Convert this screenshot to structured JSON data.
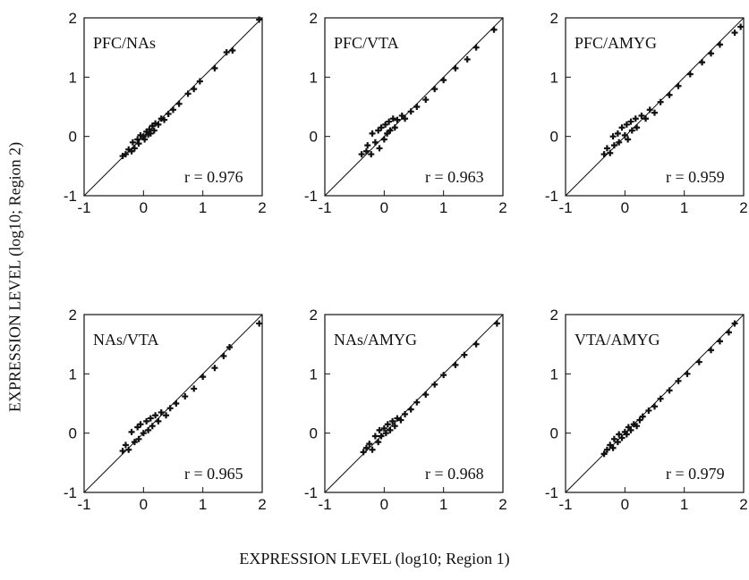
{
  "figure": {
    "ylabel": "EXPRESSION LEVEL (log10; Region 2)",
    "xlabel": "EXPRESSION LEVEL (log10; Region 1)"
  },
  "chart_data": [
    {
      "type": "scatter",
      "title": "PFC/NAs",
      "annotation": "r = 0.976",
      "xlim": [
        -1,
        2
      ],
      "ylim": [
        -1,
        2
      ],
      "xticks": [
        -1,
        0,
        1,
        2
      ],
      "yticks": [
        -1,
        0,
        1,
        2
      ],
      "identity_line": true,
      "points": [
        [
          -0.35,
          -0.33
        ],
        [
          -0.3,
          -0.3
        ],
        [
          -0.25,
          -0.22
        ],
        [
          -0.2,
          -0.25
        ],
        [
          -0.18,
          -0.1
        ],
        [
          -0.15,
          -0.2
        ],
        [
          -0.1,
          -0.05
        ],
        [
          -0.08,
          -0.12
        ],
        [
          -0.05,
          0.02
        ],
        [
          0,
          0
        ],
        [
          0.02,
          -0.05
        ],
        [
          0.05,
          0.08
        ],
        [
          0.08,
          0.03
        ],
        [
          0.1,
          0.12
        ],
        [
          0.12,
          0.05
        ],
        [
          0.15,
          0.18
        ],
        [
          0.18,
          0.1
        ],
        [
          0.2,
          0.22
        ],
        [
          0.25,
          0.2
        ],
        [
          0.3,
          0.3
        ],
        [
          0.35,
          0.28
        ],
        [
          0.42,
          0.38
        ],
        [
          0.5,
          0.45
        ],
        [
          0.6,
          0.55
        ],
        [
          0.75,
          0.72
        ],
        [
          0.85,
          0.8
        ],
        [
          0.95,
          0.93
        ],
        [
          1.2,
          1.15
        ],
        [
          1.4,
          1.42
        ],
        [
          1.5,
          1.45
        ],
        [
          1.95,
          1.97
        ]
      ]
    },
    {
      "type": "scatter",
      "title": "PFC/VTA",
      "annotation": "r = 0.963",
      "xlim": [
        -1,
        2
      ],
      "ylim": [
        -1,
        2
      ],
      "xticks": [
        -1,
        0,
        1,
        2
      ],
      "yticks": [
        -1,
        0,
        1,
        2
      ],
      "identity_line": true,
      "points": [
        [
          -0.38,
          -0.3
        ],
        [
          -0.3,
          -0.25
        ],
        [
          -0.28,
          -0.15
        ],
        [
          -0.22,
          -0.3
        ],
        [
          -0.2,
          0.05
        ],
        [
          -0.15,
          -0.1
        ],
        [
          -0.1,
          0.1
        ],
        [
          -0.08,
          -0.2
        ],
        [
          -0.05,
          0.15
        ],
        [
          0,
          -0.05
        ],
        [
          0.02,
          0.2
        ],
        [
          0.05,
          0.05
        ],
        [
          0.08,
          0.25
        ],
        [
          0.1,
          0.1
        ],
        [
          0.15,
          0.3
        ],
        [
          0.18,
          0.15
        ],
        [
          0.22,
          0.28
        ],
        [
          0.3,
          0.35
        ],
        [
          0.35,
          0.3
        ],
        [
          0.45,
          0.42
        ],
        [
          0.55,
          0.5
        ],
        [
          0.7,
          0.62
        ],
        [
          0.85,
          0.8
        ],
        [
          1.0,
          0.95
        ],
        [
          1.2,
          1.15
        ],
        [
          1.4,
          1.3
        ],
        [
          1.55,
          1.5
        ],
        [
          1.85,
          1.8
        ]
      ]
    },
    {
      "type": "scatter",
      "title": "PFC/AMYG",
      "annotation": "r = 0.959",
      "xlim": [
        -1,
        2
      ],
      "ylim": [
        -1,
        2
      ],
      "xticks": [
        -1,
        0,
        1,
        2
      ],
      "yticks": [
        -1,
        0,
        1,
        2
      ],
      "identity_line": true,
      "points": [
        [
          -0.35,
          -0.3
        ],
        [
          -0.3,
          -0.2
        ],
        [
          -0.25,
          -0.28
        ],
        [
          -0.2,
          0.0
        ],
        [
          -0.18,
          -0.15
        ],
        [
          -0.12,
          0.05
        ],
        [
          -0.1,
          -0.1
        ],
        [
          -0.05,
          0.15
        ],
        [
          0,
          0.02
        ],
        [
          0.03,
          0.2
        ],
        [
          0.05,
          -0.05
        ],
        [
          0.1,
          0.25
        ],
        [
          0.12,
          0.1
        ],
        [
          0.18,
          0.3
        ],
        [
          0.2,
          0.15
        ],
        [
          0.28,
          0.35
        ],
        [
          0.35,
          0.3
        ],
        [
          0.42,
          0.45
        ],
        [
          0.5,
          0.4
        ],
        [
          0.6,
          0.58
        ],
        [
          0.75,
          0.7
        ],
        [
          0.9,
          0.85
        ],
        [
          1.1,
          1.05
        ],
        [
          1.3,
          1.25
        ],
        [
          1.45,
          1.4
        ],
        [
          1.6,
          1.55
        ],
        [
          1.85,
          1.75
        ],
        [
          1.95,
          1.85
        ]
      ]
    },
    {
      "type": "scatter",
      "title": "NAs/VTA",
      "annotation": "r = 0.965",
      "xlim": [
        -1,
        2
      ],
      "ylim": [
        -1,
        2
      ],
      "xticks": [
        -1,
        0,
        1,
        2
      ],
      "yticks": [
        -1,
        0,
        1,
        2
      ],
      "identity_line": true,
      "points": [
        [
          -0.35,
          -0.3
        ],
        [
          -0.3,
          -0.2
        ],
        [
          -0.25,
          -0.28
        ],
        [
          -0.2,
          0.02
        ],
        [
          -0.15,
          -0.15
        ],
        [
          -0.1,
          0.1
        ],
        [
          -0.08,
          -0.1
        ],
        [
          -0.05,
          0.15
        ],
        [
          0,
          0.0
        ],
        [
          0.05,
          0.2
        ],
        [
          0.08,
          0.05
        ],
        [
          0.12,
          0.25
        ],
        [
          0.15,
          0.12
        ],
        [
          0.2,
          0.3
        ],
        [
          0.25,
          0.2
        ],
        [
          0.3,
          0.35
        ],
        [
          0.38,
          0.3
        ],
        [
          0.45,
          0.42
        ],
        [
          0.55,
          0.5
        ],
        [
          0.7,
          0.62
        ],
        [
          0.85,
          0.75
        ],
        [
          1.0,
          0.95
        ],
        [
          1.2,
          1.1
        ],
        [
          1.35,
          1.3
        ],
        [
          1.45,
          1.45
        ],
        [
          1.95,
          1.85
        ]
      ]
    },
    {
      "type": "scatter",
      "title": "NAs/AMYG",
      "annotation": "r = 0.968",
      "xlim": [
        -1,
        2
      ],
      "ylim": [
        -1,
        2
      ],
      "xticks": [
        -1,
        0,
        1,
        2
      ],
      "yticks": [
        -1,
        0,
        1,
        2
      ],
      "identity_line": true,
      "points": [
        [
          -0.35,
          -0.32
        ],
        [
          -0.3,
          -0.25
        ],
        [
          -0.25,
          -0.18
        ],
        [
          -0.2,
          -0.28
        ],
        [
          -0.15,
          -0.05
        ],
        [
          -0.1,
          -0.15
        ],
        [
          -0.08,
          0.05
        ],
        [
          -0.05,
          -0.05
        ],
        [
          0,
          0.08
        ],
        [
          0.03,
          0.0
        ],
        [
          0.06,
          0.15
        ],
        [
          0.1,
          0.05
        ],
        [
          0.14,
          0.2
        ],
        [
          0.18,
          0.12
        ],
        [
          0.22,
          0.25
        ],
        [
          0.28,
          0.22
        ],
        [
          0.35,
          0.32
        ],
        [
          0.45,
          0.4
        ],
        [
          0.55,
          0.52
        ],
        [
          0.7,
          0.65
        ],
        [
          0.85,
          0.82
        ],
        [
          1.0,
          0.98
        ],
        [
          1.2,
          1.15
        ],
        [
          1.35,
          1.32
        ],
        [
          1.55,
          1.5
        ],
        [
          1.9,
          1.85
        ]
      ]
    },
    {
      "type": "scatter",
      "title": "VTA/AMYG",
      "annotation": "r = 0.979",
      "xlim": [
        -1,
        2
      ],
      "ylim": [
        -1,
        2
      ],
      "xticks": [
        -1,
        0,
        1,
        2
      ],
      "yticks": [
        -1,
        0,
        1,
        2
      ],
      "identity_line": true,
      "points": [
        [
          -0.35,
          -0.35
        ],
        [
          -0.3,
          -0.28
        ],
        [
          -0.25,
          -0.2
        ],
        [
          -0.2,
          -0.25
        ],
        [
          -0.18,
          -0.1
        ],
        [
          -0.12,
          -0.15
        ],
        [
          -0.1,
          -0.02
        ],
        [
          -0.05,
          -0.08
        ],
        [
          0,
          0.02
        ],
        [
          0.03,
          -0.02
        ],
        [
          0.06,
          0.1
        ],
        [
          0.1,
          0.05
        ],
        [
          0.15,
          0.15
        ],
        [
          0.2,
          0.12
        ],
        [
          0.25,
          0.22
        ],
        [
          0.3,
          0.28
        ],
        [
          0.4,
          0.38
        ],
        [
          0.5,
          0.45
        ],
        [
          0.6,
          0.58
        ],
        [
          0.75,
          0.72
        ],
        [
          0.9,
          0.88
        ],
        [
          1.05,
          1.0
        ],
        [
          1.25,
          1.2
        ],
        [
          1.45,
          1.4
        ],
        [
          1.6,
          1.55
        ],
        [
          1.75,
          1.7
        ],
        [
          1.85,
          1.85
        ]
      ]
    }
  ]
}
